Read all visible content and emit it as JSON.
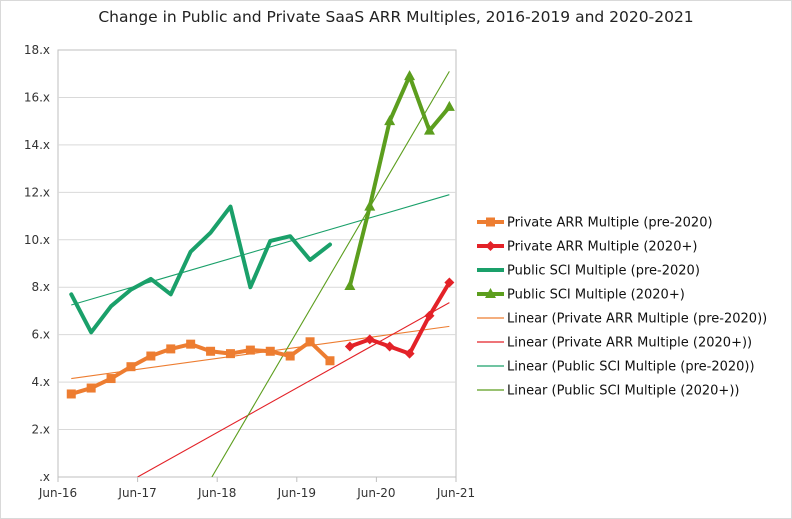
{
  "chart_data": {
    "type": "line",
    "title": "Change in Public and Private SaaS ARR Multiples, 2016-2019 and 2020-2021",
    "xlabel": "",
    "ylabel": "",
    "xlim": [
      0,
      60
    ],
    "x_tick_positions": [
      0,
      12,
      24,
      36,
      48,
      60
    ],
    "x_tick_labels": [
      "Jun-16",
      "Jun-17",
      "Jun-18",
      "Jun-19",
      "Jun-20",
      "Jun-21"
    ],
    "ylim": [
      0,
      18
    ],
    "y_ticks": [
      0,
      2,
      4,
      6,
      8,
      10,
      12,
      14,
      16,
      18
    ],
    "y_tick_labels": [
      ".x",
      "2.x",
      "4.x",
      "6.x",
      "8.x",
      "10.x",
      "12.x",
      "14.x",
      "16.x",
      "18.x"
    ],
    "grid": "horizontal",
    "legend_position": "right",
    "series": [
      {
        "name": "Private ARR Multiple (pre-2020)",
        "color": "#ed7d31",
        "marker": "square",
        "x": [
          2,
          5,
          8,
          11,
          14,
          17,
          20,
          23,
          26,
          29,
          32,
          35,
          38,
          41
        ],
        "y": [
          3.5,
          3.75,
          4.15,
          4.65,
          5.1,
          5.4,
          5.6,
          5.3,
          5.2,
          5.35,
          5.3,
          5.1,
          5.7,
          4.9
        ]
      },
      {
        "name": "Private ARR Multiple (2020+)",
        "color": "#e32228",
        "marker": "diamond",
        "x": [
          44,
          47,
          50,
          53,
          56,
          59
        ],
        "y": [
          5.5,
          5.8,
          5.5,
          5.2,
          6.8,
          8.2
        ]
      },
      {
        "name": "Public SCI Multiple (pre-2020)",
        "color": "#1aa06a",
        "marker": "none",
        "x": [
          2,
          5,
          8,
          11,
          14,
          17,
          20,
          23,
          26,
          29,
          32,
          35,
          38,
          41
        ],
        "y": [
          7.7,
          6.1,
          7.2,
          7.9,
          8.35,
          7.7,
          9.5,
          10.3,
          11.4,
          8.0,
          9.95,
          10.15,
          9.15,
          9.8
        ]
      },
      {
        "name": "Public SCI Multiple (2020+)",
        "color": "#5c9e1e",
        "marker": "triangle",
        "x": [
          44,
          47,
          50,
          53,
          56,
          59
        ],
        "y": [
          8.05,
          11.4,
          15.0,
          16.9,
          14.6,
          15.6
        ]
      }
    ],
    "trendlines": [
      {
        "name": "Linear (Private ARR Multiple (pre-2020))",
        "color": "#ed7d31",
        "x": [
          2,
          59
        ],
        "y": [
          4.15,
          6.35
        ]
      },
      {
        "name": "Linear (Private ARR Multiple (2020+))",
        "color": "#e32228",
        "x": [
          12,
          59
        ],
        "y": [
          0,
          7.35
        ]
      },
      {
        "name": "Linear (Public SCI Multiple (pre-2020))",
        "color": "#1aa06a",
        "x": [
          2,
          59
        ],
        "y": [
          7.25,
          11.9
        ]
      },
      {
        "name": "Linear (Public SCI Multiple (2020+))",
        "color": "#5c9e1e",
        "x": [
          23.2,
          59
        ],
        "y": [
          0,
          17.1
        ]
      }
    ],
    "legend": [
      {
        "label": "Private ARR Multiple (pre-2020)",
        "color": "#ed7d31",
        "kind": "line",
        "marker": "square"
      },
      {
        "label": "Private ARR Multiple (2020+)",
        "color": "#e32228",
        "kind": "line",
        "marker": "diamond"
      },
      {
        "label": "Public SCI Multiple (pre-2020)",
        "color": "#1aa06a",
        "kind": "line",
        "marker": "none"
      },
      {
        "label": "Public SCI Multiple (2020+)",
        "color": "#5c9e1e",
        "kind": "line",
        "marker": "triangle"
      },
      {
        "label": "Linear (Private ARR Multiple (pre-2020))",
        "color": "#ed7d31",
        "kind": "thin",
        "marker": "none"
      },
      {
        "label": "Linear (Private ARR Multiple (2020+))",
        "color": "#e32228",
        "kind": "thin",
        "marker": "none"
      },
      {
        "label": "Linear (Public SCI Multiple (pre-2020))",
        "color": "#1aa06a",
        "kind": "thin",
        "marker": "none"
      },
      {
        "label": "Linear (Public SCI Multiple (2020+))",
        "color": "#5c9e1e",
        "kind": "thin",
        "marker": "none"
      }
    ]
  }
}
